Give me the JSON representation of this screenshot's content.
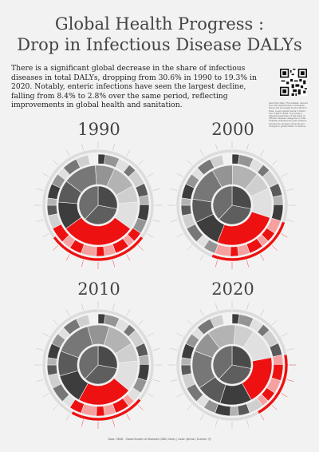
{
  "title_line1": "Global Health Progress :",
  "title_line2": "Drop in Infectious Disease DALYs",
  "intro": "There is a significant global decrease in the share of infectious diseases in total DALYs, dropping from 30.6% in 1990 to 19.3% in 2020. Notably, enteric infections have seen the largest decline, falling from 8.4% to 2.8% over the same period, reflecting improvements in global health and sanitation.",
  "side_note": "About the Data: This dataset, derived from the Global Burden of Disease Study and processed by Our World in Data, covers global trends in DALYs from 1990 to 2020. It provides a detailed breakdown of the share of different disease categories in total disability-adjusted life years (DALYs), allowing for analysis of trends and changes in global health conditions.",
  "footer": "Data: OWID · Global Burden of Diseases (GBD) Study | Code: github | Graphic: @",
  "colors": {
    "accent": "#ee1111",
    "accent_light": "#f7a0a0",
    "dark": "#444444",
    "mid": "#8f8f8f",
    "light": "#d0d0d0"
  },
  "charts": [
    {
      "year": "1990",
      "infectious_share": 30.6,
      "enteric_share": 8.4
    },
    {
      "year": "2000"
    },
    {
      "year": "2010"
    },
    {
      "year": "2020",
      "infectious_share": 19.3,
      "enteric_share": 2.8
    }
  ]
}
